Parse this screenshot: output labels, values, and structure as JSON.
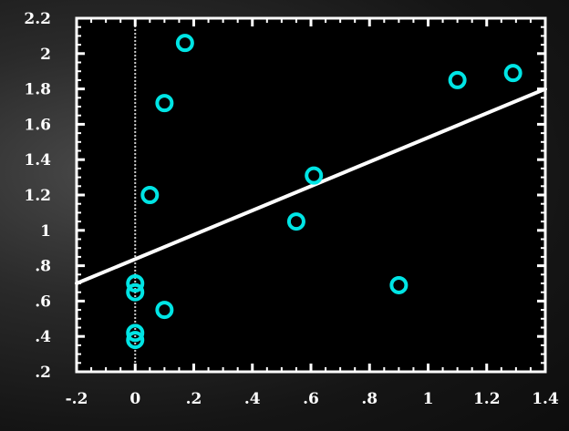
{
  "chart_data": {
    "type": "scatter",
    "title": "",
    "xlabel": "",
    "ylabel": "",
    "xlim": [
      -0.2,
      1.4
    ],
    "ylim": [
      0.2,
      2.2
    ],
    "grid": false,
    "x_tick_labels": [
      "-.2",
      "0",
      ".2",
      ".4",
      ".6",
      ".8",
      "1",
      "1.2",
      "1.4"
    ],
    "y_tick_labels": [
      "2.2",
      "2",
      "1.8",
      "1.6",
      "1.4",
      "1.2",
      "1",
      ".8",
      ".6",
      ".4",
      ".2"
    ],
    "reference_line": {
      "x": 0
    },
    "fit_line": {
      "x": [
        -0.2,
        1.4
      ],
      "y": [
        0.7,
        1.8
      ]
    },
    "points": [
      {
        "x": 0.17,
        "y": 2.06
      },
      {
        "x": 0.1,
        "y": 1.72
      },
      {
        "x": 0.05,
        "y": 1.2
      },
      {
        "x": 0.0,
        "y": 0.7
      },
      {
        "x": 0.0,
        "y": 0.65
      },
      {
        "x": 0.0,
        "y": 0.42
      },
      {
        "x": 0.0,
        "y": 0.38
      },
      {
        "x": 0.1,
        "y": 0.55
      },
      {
        "x": 0.55,
        "y": 1.05
      },
      {
        "x": 0.61,
        "y": 1.31
      },
      {
        "x": 0.9,
        "y": 0.69
      },
      {
        "x": 1.1,
        "y": 1.85
      },
      {
        "x": 1.29,
        "y": 1.89
      }
    ],
    "colors": {
      "plot_background": "#000000",
      "axes": "#ffffff",
      "points": "#00e5e5",
      "fit_line": "#ffffff",
      "reference_line": "#cccccc"
    }
  }
}
